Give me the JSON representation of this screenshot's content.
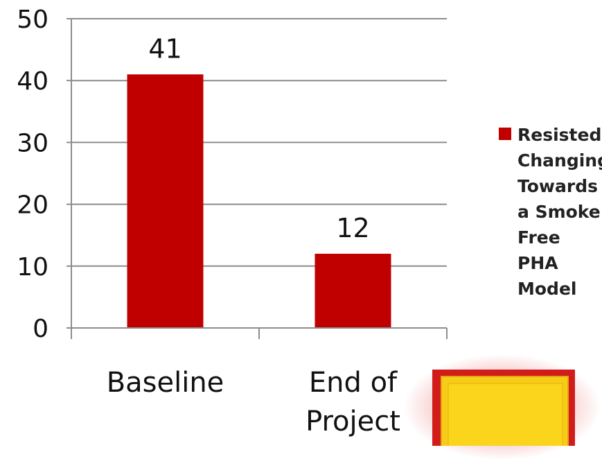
{
  "chart_data": {
    "type": "bar",
    "categories": [
      "Baseline",
      "End of Project"
    ],
    "series": [
      {
        "name": "Resisted Changing Towards a Smoke Free PHA Model",
        "values": [
          41,
          12
        ],
        "color": "#c00000"
      }
    ],
    "data_labels": [
      "41",
      "12"
    ],
    "y_ticks": [
      "0",
      "10",
      "20",
      "30",
      "40",
      "50"
    ],
    "ylim": [
      0,
      50
    ],
    "grid": true,
    "legend_position": "right"
  },
  "legend": {
    "label": "Resisted Changing Towards a Smoke Free PHA Model",
    "color": "#c00000"
  },
  "decoration": {
    "icon": "yellow-square-icon",
    "colors": {
      "border": "#d21c1c",
      "fill": "#f7cc18"
    }
  }
}
